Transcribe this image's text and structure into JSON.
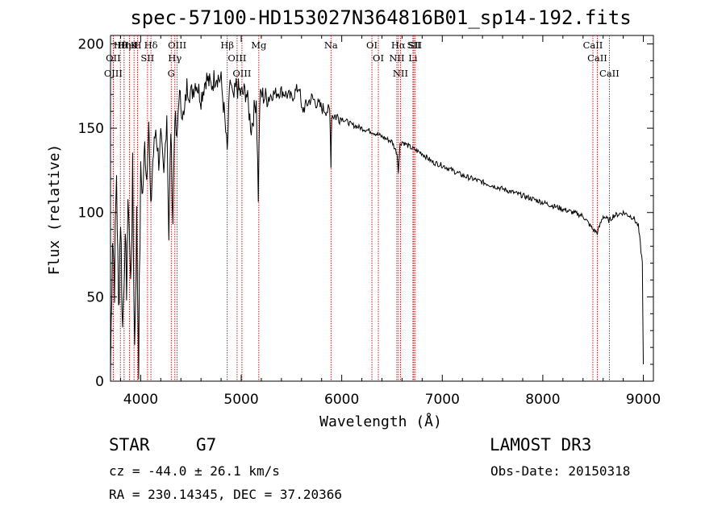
{
  "chart_data": {
    "type": "line",
    "title": "spec-57100-HD153027N364816B01_sp14-192.fits",
    "xlabel": "Wavelength (Å)",
    "ylabel": "Flux (relative)",
    "xlim": [
      3700,
      9100
    ],
    "ylim": [
      0,
      205
    ],
    "x_ticks": [
      4000,
      5000,
      6000,
      7000,
      8000,
      9000
    ],
    "y_ticks": [
      0,
      50,
      100,
      150,
      200
    ],
    "spectrum": {
      "x": [
        3700,
        3720,
        3740,
        3760,
        3780,
        3800,
        3820,
        3840,
        3860,
        3880,
        3900,
        3920,
        3940,
        3960,
        3980,
        4000,
        4020,
        4040,
        4060,
        4080,
        4100,
        4120,
        4150,
        4180,
        4200,
        4230,
        4260,
        4280,
        4300,
        4320,
        4340,
        4360,
        4380,
        4400,
        4430,
        4460,
        4500,
        4550,
        4600,
        4650,
        4700,
        4750,
        4800,
        4830,
        4861,
        4890,
        4920,
        4950,
        5000,
        5050,
        5100,
        5150,
        5170,
        5184,
        5200,
        5250,
        5300,
        5400,
        5500,
        5580,
        5600,
        5700,
        5800,
        5880,
        5893,
        5900,
        6000,
        6100,
        6200,
        6300,
        6400,
        6500,
        6550,
        6563,
        6580,
        6600,
        6700,
        6800,
        6900,
        7000,
        7200,
        7400,
        7600,
        7800,
        8000,
        8200,
        8400,
        8498,
        8542,
        8600,
        8662,
        8700,
        8800,
        8900,
        8950,
        8990,
        9000
      ],
      "y": [
        5,
        90,
        60,
        125,
        40,
        100,
        30,
        80,
        60,
        110,
        55,
        120,
        20,
        95,
        12,
        125,
        110,
        140,
        120,
        155,
        100,
        130,
        150,
        130,
        145,
        120,
        160,
        85,
        150,
        95,
        160,
        140,
        170,
        165,
        155,
        175,
        170,
        178,
        168,
        180,
        175,
        182,
        178,
        160,
        135,
        180,
        165,
        175,
        170,
        172,
        150,
        168,
        110,
        165,
        170,
        168,
        170,
        172,
        168,
        175,
        160,
        168,
        162,
        160,
        130,
        158,
        156,
        152,
        150,
        148,
        145,
        142,
        135,
        125,
        140,
        142,
        138,
        135,
        130,
        128,
        122,
        118,
        114,
        110,
        106,
        102,
        98,
        90,
        88,
        98,
        95,
        98,
        100,
        97,
        92,
        70,
        10
      ]
    },
    "lines": [
      {
        "name": "Hθ",
        "wave": 3798
      },
      {
        "name": "OII",
        "wave": 3727
      },
      {
        "name": "OIII",
        "wave": 3727
      },
      {
        "name": "K",
        "wave": 3934
      },
      {
        "name": "HeI",
        "wave": 3889
      },
      {
        "name": "Hη",
        "wave": 3835
      },
      {
        "name": "H",
        "wave": 3969
      },
      {
        "name": "SII",
        "wave": 4068
      },
      {
        "name": "Hδ",
        "wave": 4102
      },
      {
        "name": "OIII",
        "wave": 4363
      },
      {
        "name": "Hγ",
        "wave": 4340
      },
      {
        "name": "G",
        "wave": 4304
      },
      {
        "name": "Hβ",
        "wave": 4861
      },
      {
        "name": "OIII",
        "wave": 4959
      },
      {
        "name": "OIII",
        "wave": 5007
      },
      {
        "name": "Mg",
        "wave": 5175
      },
      {
        "name": "Na",
        "wave": 5893
      },
      {
        "name": "OI",
        "wave": 6300
      },
      {
        "name": "OI",
        "wave": 6364
      },
      {
        "name": "Hα",
        "wave": 6563
      },
      {
        "name": "NII",
        "wave": 6548
      },
      {
        "name": "NII",
        "wave": 6584
      },
      {
        "name": "SII",
        "wave": 6717
      },
      {
        "name": "Li",
        "wave": 6708
      },
      {
        "name": "SII",
        "wave": 6731
      },
      {
        "name": "CaII",
        "wave": 8498
      },
      {
        "name": "CaII",
        "wave": 8542
      },
      {
        "name": "CaII",
        "wave": 8662
      }
    ]
  },
  "info": {
    "object_class": "STAR",
    "subclass": "G7",
    "survey": "LAMOST DR3",
    "redshift": "cz = -44.0 ± 26.1 km/s",
    "obs_date": "Obs-Date: 20150318",
    "coords": "RA = 230.14345, DEC =  37.20366"
  },
  "colors": {
    "spectrum": "#000000",
    "line_markers": "#cc0000"
  }
}
